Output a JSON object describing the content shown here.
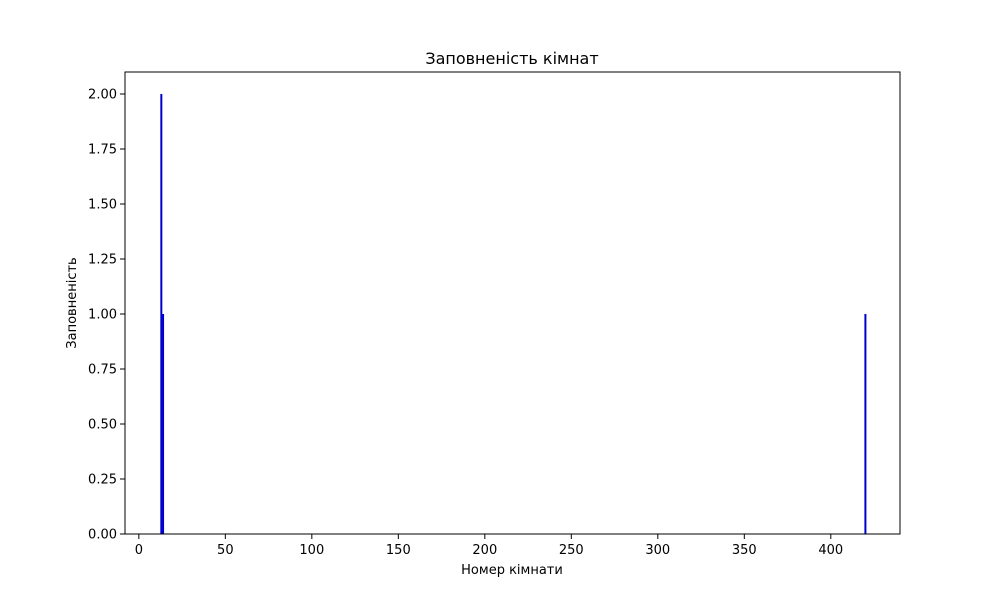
{
  "chart_data": {
    "type": "bar",
    "title": "Заповненість кімнат",
    "xlabel": "Номер кімнати",
    "ylabel": "Заповненість",
    "xlim": [
      -8,
      440
    ],
    "ylim": [
      0,
      2.1
    ],
    "x_ticks": [
      0,
      50,
      100,
      150,
      200,
      250,
      300,
      350,
      400
    ],
    "y_ticks": [
      0.0,
      0.25,
      0.5,
      0.75,
      1.0,
      1.25,
      1.5,
      1.75,
      2.0
    ],
    "y_tick_labels": [
      "0.00",
      "0.25",
      "0.50",
      "0.75",
      "1.00",
      "1.25",
      "1.50",
      "1.75",
      "2.00"
    ],
    "bar_color": "#0000cc",
    "x": [
      13,
      14,
      420
    ],
    "values": [
      2,
      1,
      1
    ],
    "grid": false,
    "legend": "none"
  }
}
